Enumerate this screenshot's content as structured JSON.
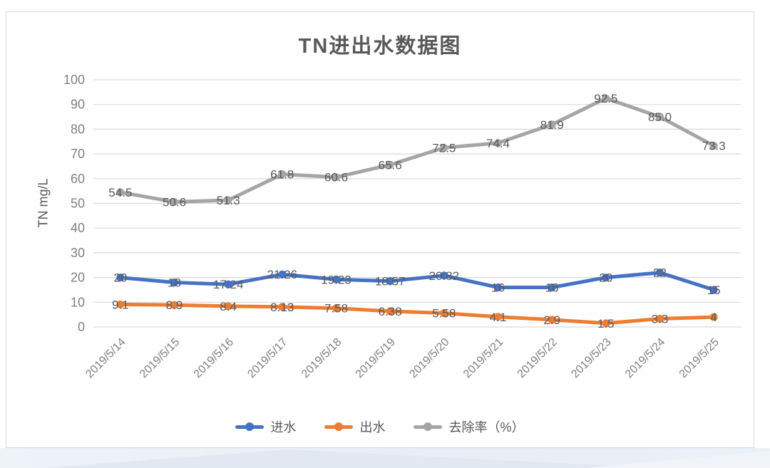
{
  "chart_data": {
    "type": "line",
    "title": "TN进出水数据图",
    "xlabel": "",
    "ylabel": "TN mg/L",
    "ylim": [
      0,
      100
    ],
    "ytick_step": 10,
    "grid": "horizontal",
    "legend_position": "bottom",
    "marker": "circle",
    "label_position": "center",
    "categories": [
      "2019/5/14",
      "2019/5/15",
      "2019/5/16",
      "2019/5/17",
      "2019/5/18",
      "2019/5/19",
      "2019/5/20",
      "2019/5/21",
      "2019/5/22",
      "2019/5/23",
      "2019/5/24",
      "2019/5/25"
    ],
    "series": [
      {
        "key": "inflow",
        "name": "进水",
        "color": "#4472C4",
        "values": [
          20,
          18,
          17.24,
          21.26,
          19.23,
          18.57,
          20.82,
          16,
          16,
          20,
          22,
          15
        ],
        "labels": [
          "20",
          "18",
          "17.24",
          "21.26",
          "19.23",
          "18.57",
          "20.82",
          "16",
          "16",
          "20",
          "22",
          "15"
        ]
      },
      {
        "key": "outflow",
        "name": "出水",
        "color": "#ED7D31",
        "values": [
          9.1,
          8.9,
          8.4,
          8.13,
          7.58,
          6.38,
          5.58,
          4.1,
          2.9,
          1.5,
          3.3,
          4
        ],
        "labels": [
          "9.1",
          "8.9",
          "8.4",
          "8.13",
          "7.58",
          "6.38",
          "5.58",
          "4.1",
          "2.9",
          "1.5",
          "3.3",
          "4"
        ]
      },
      {
        "key": "removal-rate",
        "name": "去除率（%）",
        "color": "#A5A5A5",
        "values": [
          54.5,
          50.6,
          51.3,
          61.8,
          60.6,
          65.6,
          72.5,
          74.4,
          81.9,
          92.5,
          85.0,
          73.3
        ],
        "labels": [
          "54.5",
          "50.6",
          "51.3",
          "61.8",
          "60.6",
          "65.6",
          "72.5",
          "74.4",
          "81.9",
          "92.5",
          "85.0",
          "73.3"
        ]
      }
    ],
    "colors": {
      "gridline": "#d9d9d9",
      "tick_label": "#808080",
      "data_label": "#595959",
      "title_text": "#595959"
    }
  }
}
